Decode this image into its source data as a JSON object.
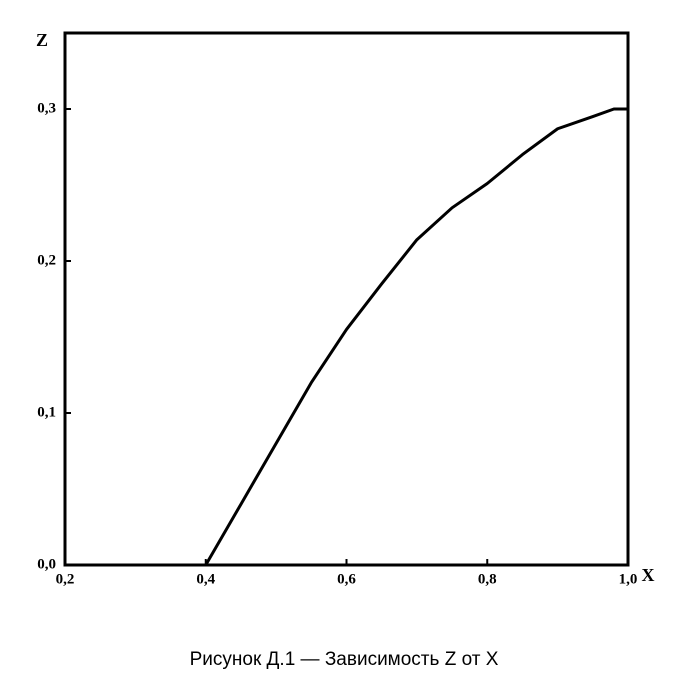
{
  "chart_data": {
    "type": "line",
    "title": "Рисунок Д.1 — Зависимость Z от X",
    "x_label": "X",
    "y_label": "Z",
    "x": [
      0.4,
      0.45,
      0.5,
      0.55,
      0.6,
      0.65,
      0.7,
      0.75,
      0.8,
      0.85,
      0.9,
      0.95,
      0.98,
      1.0
    ],
    "values": [
      0,
      0.04,
      0.08,
      0.12,
      0.155,
      0.185,
      0.214,
      0.235,
      0.251,
      0.27,
      0.287,
      0.295,
      0.3,
      0.3
    ],
    "color": "#000000",
    "xlim": [
      0.2,
      1.0
    ],
    "xticks": [
      {
        "value": 0.2,
        "label": "0,2"
      },
      {
        "value": 0.4,
        "label": "0,4"
      },
      {
        "value": 0.6,
        "label": "0,6"
      },
      {
        "value": 0.8,
        "label": "0,8"
      },
      {
        "value": 1.0,
        "label": "1,0"
      }
    ],
    "ylim": [
      0,
      0.35
    ],
    "yticks": [
      {
        "value": 0,
        "label": "0,0"
      },
      {
        "value": 0.1,
        "label": "0,1"
      },
      {
        "value": 0.2,
        "label": "0,2"
      },
      {
        "value": 0.3,
        "label": "0,3"
      }
    ],
    "grid": false
  }
}
